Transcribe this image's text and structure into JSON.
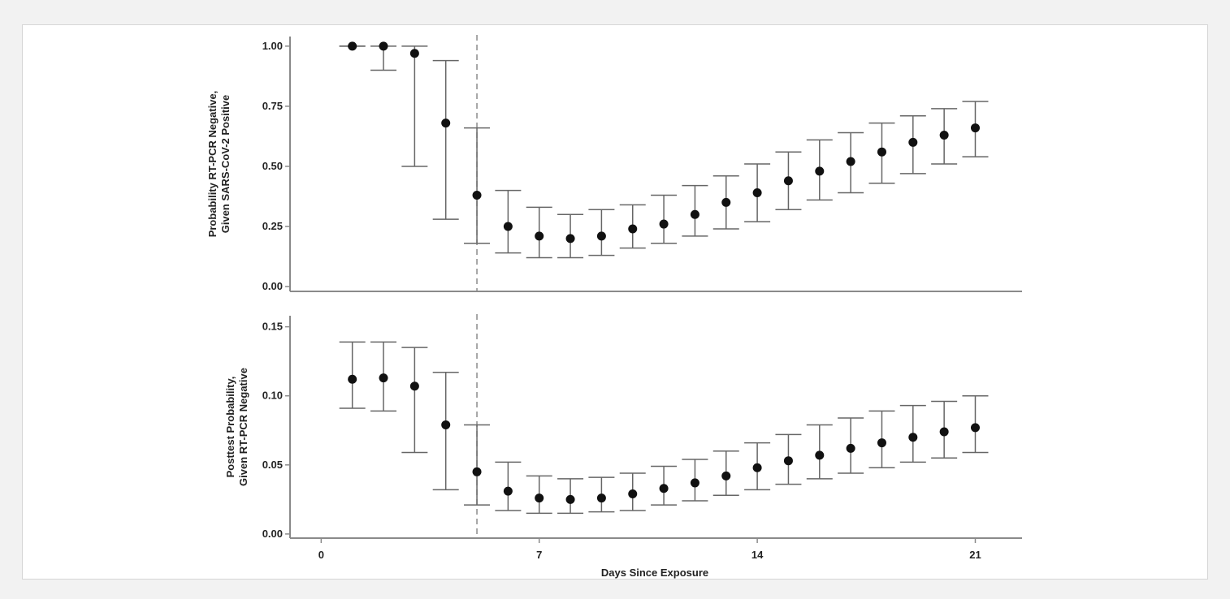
{
  "colors": {
    "axis": "#8a8a8a",
    "errorbar": "#666666",
    "point": "#111111",
    "dashed": "#8a8a8a",
    "text": "#222222"
  },
  "xlabel": "Days Since Exposure",
  "x_ticks": [
    0,
    7,
    14,
    21
  ],
  "x_tick_labels": [
    "0",
    "7",
    "14",
    "21"
  ],
  "chart_data": [
    {
      "type": "scatter",
      "title": "",
      "ylabel_lines": [
        "Probability RT-PCR Negative,",
        "Given SARS-CoV-2 Positive"
      ],
      "xlim": [
        -1,
        22.5
      ],
      "ylim": [
        -0.02,
        1.04
      ],
      "y_ticks": [
        0,
        0.25,
        0.5,
        0.75,
        1.0
      ],
      "y_tick_labels": [
        "0.00",
        "0.25",
        "0.50",
        "0.75",
        "1.00"
      ],
      "reference_line_x": 5,
      "x": [
        1,
        2,
        3,
        4,
        5,
        6,
        7,
        8,
        9,
        10,
        11,
        12,
        13,
        14,
        15,
        16,
        17,
        18,
        19,
        20,
        21
      ],
      "y": [
        1.0,
        1.0,
        0.97,
        0.68,
        0.38,
        0.25,
        0.21,
        0.2,
        0.21,
        0.24,
        0.26,
        0.3,
        0.35,
        0.39,
        0.44,
        0.48,
        0.52,
        0.56,
        0.6,
        0.63,
        0.66
      ],
      "lower": [
        1.0,
        0.9,
        0.5,
        0.28,
        0.18,
        0.14,
        0.12,
        0.12,
        0.13,
        0.16,
        0.18,
        0.21,
        0.24,
        0.27,
        0.32,
        0.36,
        0.39,
        0.43,
        0.47,
        0.51,
        0.54
      ],
      "upper": [
        1.0,
        1.0,
        1.0,
        0.94,
        0.66,
        0.4,
        0.33,
        0.3,
        0.32,
        0.34,
        0.38,
        0.42,
        0.46,
        0.51,
        0.56,
        0.61,
        0.64,
        0.68,
        0.71,
        0.74,
        0.77
      ]
    },
    {
      "type": "scatter",
      "title": "",
      "ylabel_lines": [
        "Posttest Probability,",
        "Given RT-PCR Negative"
      ],
      "xlim": [
        -1,
        22.5
      ],
      "ylim": [
        -0.003,
        0.158
      ],
      "y_ticks": [
        0,
        0.05,
        0.1,
        0.15
      ],
      "y_tick_labels": [
        "0.00",
        "0.05",
        "0.10",
        "0.15"
      ],
      "reference_line_x": 5,
      "x": [
        1,
        2,
        3,
        4,
        5,
        6,
        7,
        8,
        9,
        10,
        11,
        12,
        13,
        14,
        15,
        16,
        17,
        18,
        19,
        20,
        21
      ],
      "y": [
        0.112,
        0.113,
        0.107,
        0.079,
        0.045,
        0.031,
        0.026,
        0.025,
        0.026,
        0.029,
        0.033,
        0.037,
        0.042,
        0.048,
        0.053,
        0.057,
        0.062,
        0.066,
        0.07,
        0.074,
        0.077
      ],
      "lower": [
        0.091,
        0.089,
        0.059,
        0.032,
        0.021,
        0.017,
        0.015,
        0.015,
        0.016,
        0.017,
        0.021,
        0.024,
        0.028,
        0.032,
        0.036,
        0.04,
        0.044,
        0.048,
        0.052,
        0.055,
        0.059
      ],
      "upper": [
        0.139,
        0.139,
        0.135,
        0.117,
        0.079,
        0.052,
        0.042,
        0.04,
        0.041,
        0.044,
        0.049,
        0.054,
        0.06,
        0.066,
        0.072,
        0.079,
        0.084,
        0.089,
        0.093,
        0.096,
        0.1
      ]
    }
  ]
}
